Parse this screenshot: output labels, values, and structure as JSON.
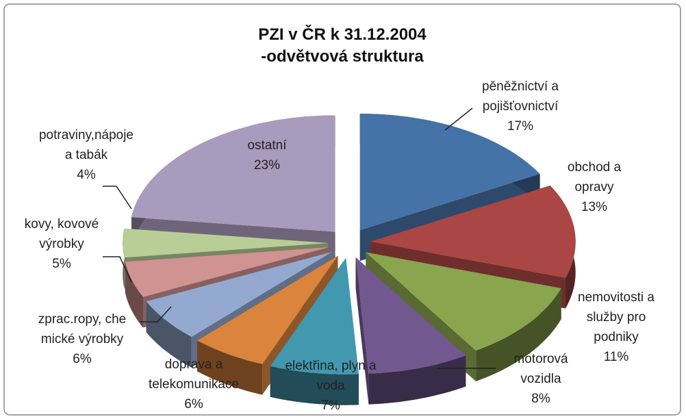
{
  "chart_data": {
    "type": "pie",
    "title": "PZI v ČR k 31.12.2004\n-odvětvová struktura",
    "categories": [
      "pěněžnictví a\npojišťovnictví",
      "obchod a\nopravy",
      "nemovitosti a\nslužby pro\npodniky",
      "motorová\nvozidla",
      "elektřina, plyn a\nvoda",
      "doprava a\ntelekomunikace",
      "zprac.ropy, che\nmické výrobky",
      "kovy, kovové\nvýrobky",
      "potraviny,nápoje\na tabák",
      "ostatní"
    ],
    "values": [
      17,
      13,
      11,
      8,
      7,
      6,
      6,
      5,
      4,
      23
    ],
    "value_labels": [
      "17%",
      "13%",
      "11%",
      "8%",
      "7%",
      "6%",
      "6%",
      "5%",
      "4%",
      "23%"
    ],
    "colors": [
      "#4572a7",
      "#aa4643",
      "#89a54e",
      "#71588f",
      "#4198af",
      "#db843d",
      "#93a9cf",
      "#d19392",
      "#b9cd96",
      "#a99bbd"
    ]
  }
}
